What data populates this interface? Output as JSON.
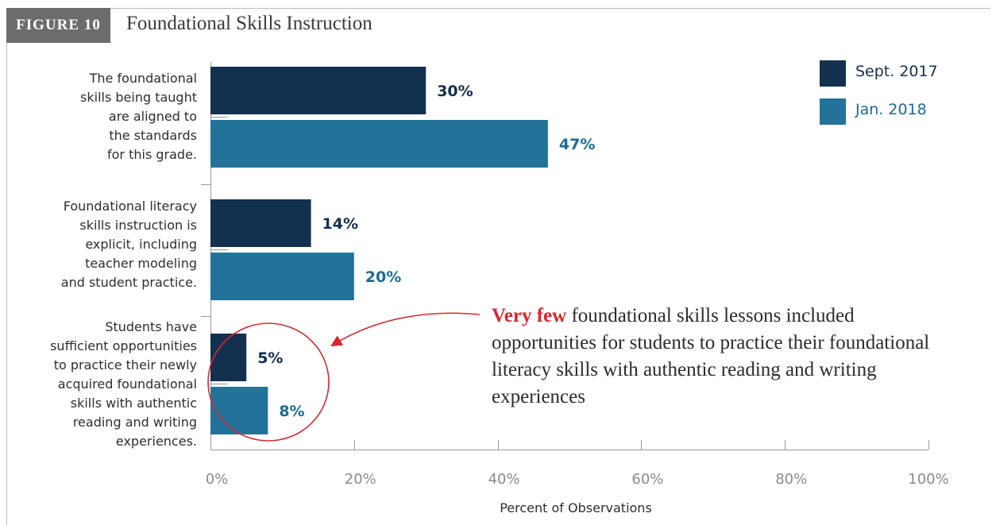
{
  "figure": {
    "tag": "FIGURE 10",
    "title": "Foundational Skills Instruction"
  },
  "legend": [
    {
      "label": "Sept. 2017",
      "color": "#13304f"
    },
    {
      "label": "Jan. 2018",
      "color": "#23729a"
    }
  ],
  "annotation": {
    "highlight": "Very few",
    "text": " foundational skills lessons included opportunities for students to practice their foundational literacy skills with authentic reading and writing experiences",
    "highlight_color": "#d42a2f"
  },
  "chart_data": {
    "type": "bar",
    "orientation": "horizontal",
    "categories": [
      [
        "The foundational",
        "skills being taught",
        "are aligned to",
        "the standards",
        "for this grade."
      ],
      [
        "Foundational literacy",
        "skills instruction is",
        "explicit, including",
        "teacher modeling",
        "and student practice."
      ],
      [
        "Students have",
        "sufficient opportunities",
        "to practice their newly",
        "acquired foundational",
        "skills with authentic",
        "reading and writing",
        "experiences."
      ]
    ],
    "series": [
      {
        "name": "Sept. 2017",
        "values": [
          30,
          14,
          5
        ],
        "labels": [
          "30%",
          "14%",
          "5%"
        ],
        "color": "#13304f",
        "label_color": "#13304f"
      },
      {
        "name": "Jan. 2018",
        "values": [
          47,
          20,
          8
        ],
        "labels": [
          "47%",
          "20%",
          "8%"
        ],
        "color": "#23729a",
        "label_color": "#1d6a92"
      }
    ],
    "xlabel": "Percent of Observations",
    "xlim": [
      0,
      100
    ],
    "xticks": [
      "0%",
      "20%",
      "40%",
      "60%",
      "80%",
      "100%"
    ],
    "xtick_values": [
      0,
      20,
      40,
      60,
      80,
      100
    ],
    "legend_position": "top-right",
    "grid": false
  }
}
